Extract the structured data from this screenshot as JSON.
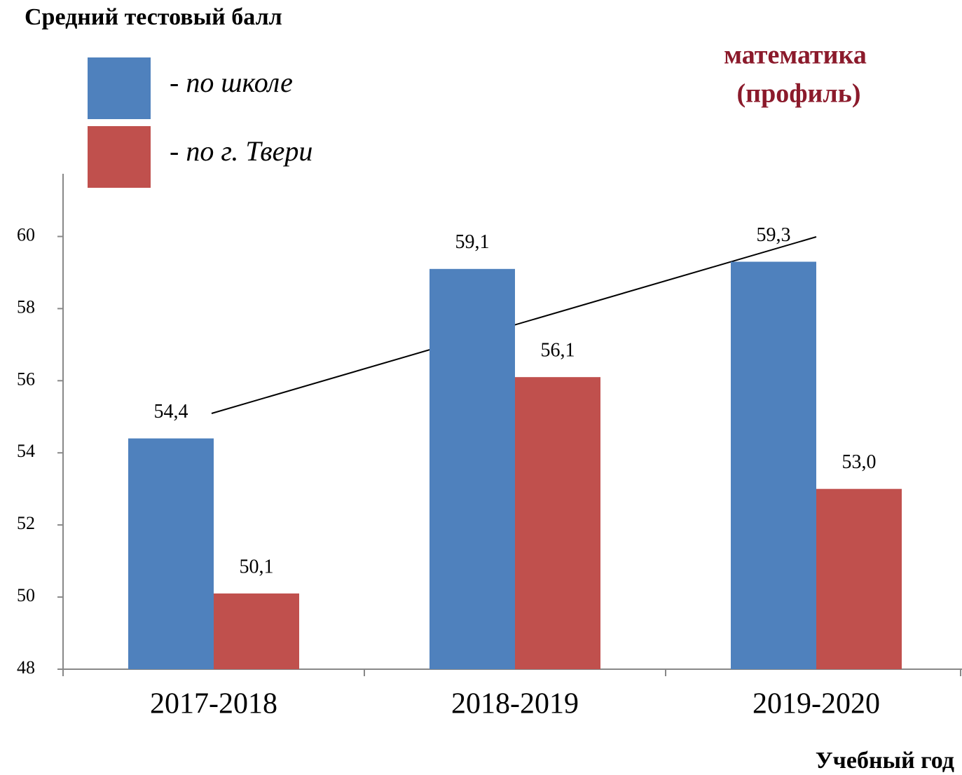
{
  "chart_data": {
    "type": "bar",
    "title": "Средний тестовый балл",
    "subtitle_lines": [
      "математика",
      "(профиль)"
    ],
    "x_label": "Учебный год",
    "categories": [
      "2017-2018",
      "2018-2019",
      "2019-2020"
    ],
    "series": [
      {
        "name": "- по школе",
        "color": "#4f81bd",
        "values": [
          54.4,
          59.1,
          59.3
        ],
        "value_labels": [
          "54,4",
          "59,1",
          "59,3"
        ]
      },
      {
        "name": "- по г. Твери",
        "color": "#c0504d",
        "values": [
          50.1,
          56.1,
          53.0
        ],
        "value_labels": [
          "50,1",
          "56,1",
          "53,0"
        ]
      }
    ],
    "ylim": [
      48,
      61.7
    ],
    "yticks": [
      48,
      50,
      52,
      54,
      56,
      58,
      60
    ],
    "grid": false
  }
}
